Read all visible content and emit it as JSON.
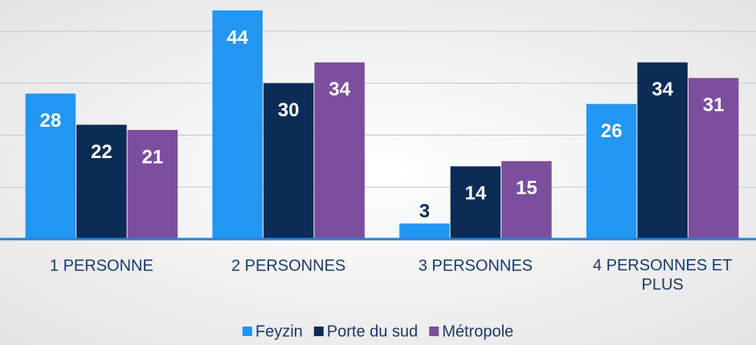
{
  "chart_data": {
    "type": "bar",
    "categories": [
      "1 PERSONNE",
      "2 PERSONNES",
      "3 PERSONNES",
      "4 PERSONNES ET PLUS"
    ],
    "series": [
      {
        "name": "Feyzin",
        "color": "#2196f3",
        "values": [
          28,
          44,
          3,
          26
        ]
      },
      {
        "name": "Porte du sud",
        "color": "#0b2c55",
        "values": [
          22,
          30,
          14,
          34
        ]
      },
      {
        "name": "Métropole",
        "color": "#7b4f9d",
        "values": [
          21,
          34,
          15,
          31
        ]
      }
    ],
    "ylim": [
      0,
      46
    ],
    "yticks": [
      0,
      10,
      20,
      30,
      40
    ],
    "grid": true,
    "legend": "bottom"
  }
}
